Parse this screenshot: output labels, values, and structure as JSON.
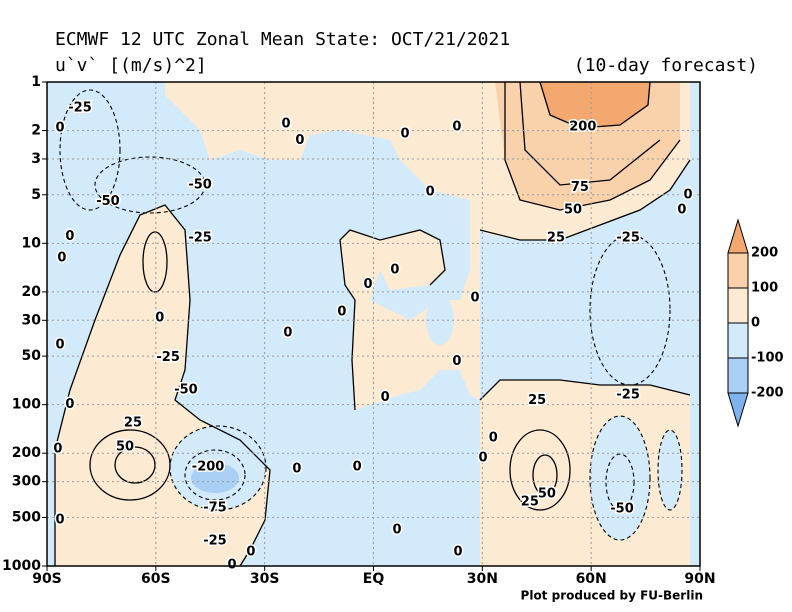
{
  "chart_data": {
    "type": "contour",
    "title": "ECMWF 12 UTC Zonal Mean State: OCT/21/2021",
    "subtitle": "u`v` [(m/s)^2]",
    "note": "(10-day forecast)",
    "credit": "Plot produced by FU-Berlin",
    "xlim": [
      -90,
      90
    ],
    "xticks": [
      {
        "value": -90,
        "label": "90S"
      },
      {
        "value": -60,
        "label": "60S"
      },
      {
        "value": -30,
        "label": "30S"
      },
      {
        "value": 0,
        "label": "EQ"
      },
      {
        "value": 30,
        "label": "30N"
      },
      {
        "value": 60,
        "label": "60N"
      },
      {
        "value": 90,
        "label": "90N"
      }
    ],
    "ylim": [
      1000,
      1
    ],
    "yticks": [
      1,
      2,
      3,
      5,
      10,
      20,
      30,
      50,
      100,
      200,
      300,
      500,
      1000
    ],
    "log_y": true,
    "grid": true,
    "colorbar": {
      "levels": [
        -200,
        -100,
        0,
        100,
        200
      ],
      "colors": [
        "#7fb3ee",
        "#a9cff4",
        "#d3eafb",
        "#fcebd2",
        "#f9d2ab",
        "#f3a86f"
      ]
    },
    "contour_labels": [
      {
        "value": -25,
        "lat": -80.9,
        "p": 1.45
      },
      {
        "value": 0,
        "lat": -86.4,
        "p": 1.93
      },
      {
        "value": -50,
        "lat": -47.8,
        "p": 4.35
      },
      {
        "value": -50,
        "lat": -73.2,
        "p": 5.5
      },
      {
        "value": -25,
        "lat": -47.8,
        "p": 9.3
      },
      {
        "value": 0,
        "lat": -83.7,
        "p": 9.1
      },
      {
        "value": 0,
        "lat": -85.9,
        "p": 12.3
      },
      {
        "value": 0,
        "lat": -24.1,
        "p": 1.82
      },
      {
        "value": 0,
        "lat": -20.3,
        "p": 2.3
      },
      {
        "value": 0,
        "lat": 8.7,
        "p": 2.1
      },
      {
        "value": 0,
        "lat": 23,
        "p": 1.9
      },
      {
        "value": 200,
        "lat": 57.7,
        "p": 1.9
      },
      {
        "value": 0,
        "lat": 15.6,
        "p": 4.8
      },
      {
        "value": 75,
        "lat": 56.9,
        "p": 4.5
      },
      {
        "value": 50,
        "lat": 55,
        "p": 6.2
      },
      {
        "value": 25,
        "lat": 50.3,
        "p": 9.3
      },
      {
        "value": -25,
        "lat": 70.2,
        "p": 9.3
      },
      {
        "value": 0,
        "lat": 86.7,
        "p": 5
      },
      {
        "value": 0,
        "lat": 85,
        "p": 6.2
      },
      {
        "value": 0,
        "lat": 5.9,
        "p": 14.6
      },
      {
        "value": 0,
        "lat": -1.5,
        "p": 18
      },
      {
        "value": 0,
        "lat": 28,
        "p": 21.8
      },
      {
        "value": 0,
        "lat": -8.7,
        "p": 26.7
      },
      {
        "value": 0,
        "lat": -23.6,
        "p": 36
      },
      {
        "value": 0,
        "lat": -58.9,
        "p": 29
      },
      {
        "value": 0,
        "lat": -86.4,
        "p": 42.7
      },
      {
        "value": -25,
        "lat": -56.6,
        "p": 51
      },
      {
        "value": -50,
        "lat": -51.7,
        "p": 81
      },
      {
        "value": 0,
        "lat": -83.7,
        "p": 100
      },
      {
        "value": 0,
        "lat": 3.2,
        "p": 90
      },
      {
        "value": 0,
        "lat": 23,
        "p": 54
      },
      {
        "value": 25,
        "lat": 45.1,
        "p": 94
      },
      {
        "value": -25,
        "lat": 70.2,
        "p": 87
      },
      {
        "value": 25,
        "lat": -66.3,
        "p": 130
      },
      {
        "value": 50,
        "lat": -68.5,
        "p": 183
      },
      {
        "value": 0,
        "lat": -87,
        "p": 188
      },
      {
        "value": -200,
        "lat": -45.6,
        "p": 243
      },
      {
        "value": -75,
        "lat": -43.7,
        "p": 437
      },
      {
        "value": -25,
        "lat": -43.7,
        "p": 700
      },
      {
        "value": 0,
        "lat": -86.4,
        "p": 519
      },
      {
        "value": 0,
        "lat": -21.1,
        "p": 250
      },
      {
        "value": 0,
        "lat": -4.5,
        "p": 243
      },
      {
        "value": 0,
        "lat": 30.2,
        "p": 214
      },
      {
        "value": 0,
        "lat": 33,
        "p": 161
      },
      {
        "value": 50,
        "lat": 47.8,
        "p": 358
      },
      {
        "value": 25,
        "lat": 43.1,
        "p": 401
      },
      {
        "value": -50,
        "lat": 68.5,
        "p": 443
      },
      {
        "value": 0,
        "lat": 6.5,
        "p": 598
      },
      {
        "value": 0,
        "lat": -33.8,
        "p": 819
      },
      {
        "value": 0,
        "lat": 23.3,
        "p": 819
      },
      {
        "value": 0,
        "lat": -39,
        "p": 986
      }
    ]
  }
}
